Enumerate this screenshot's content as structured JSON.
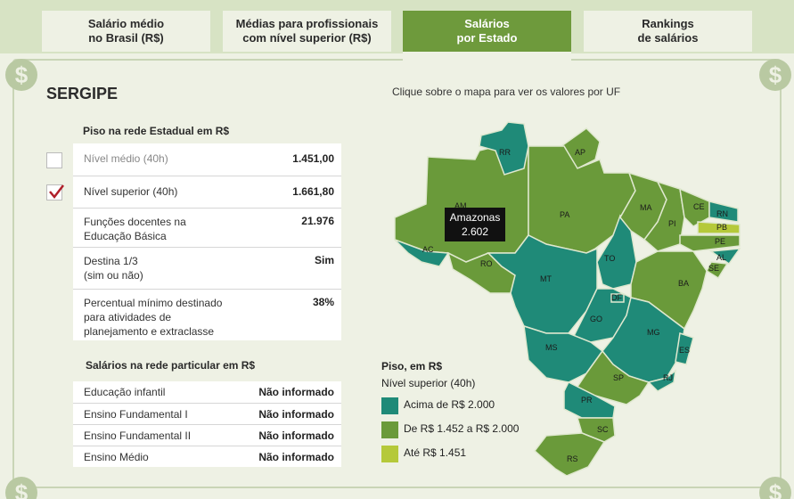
{
  "tabs": [
    {
      "label": "Salário médio\nno Brasil (R$)"
    },
    {
      "label": "Médias para profissionais\ncom nível superior (R$)"
    },
    {
      "label": "Salários\npor Estado"
    },
    {
      "label": "Rankings\nde salários"
    }
  ],
  "state_title": "SERGIPE",
  "map_hint": "Clique sobre o mapa para ver os valores por UF",
  "icons": {
    "currency": "$"
  },
  "public": {
    "title": "Piso na rede Estadual em R$",
    "rows": [
      {
        "label": "Nível médio (40h)",
        "value": "1.451,00",
        "checked": false
      },
      {
        "label": "Nível superior (40h)",
        "value": "1.661,80",
        "checked": true
      },
      {
        "label": "Funções docentes na\nEducação Básica",
        "value": "21.976"
      },
      {
        "label": "Destina 1/3\n(sim ou não)",
        "value": "Sim"
      },
      {
        "label": "Percentual mínimo destinado\npara atividades de\nplanejamento e extraclasse",
        "value": "38%"
      }
    ]
  },
  "private": {
    "title": "Salários na rede particular em R$",
    "rows": [
      {
        "label": "Educação infantil",
        "value": "Não informado"
      },
      {
        "label": "Ensino Fundamental I",
        "value": "Não informado"
      },
      {
        "label": "Ensino Fundamental II",
        "value": "Não informado"
      },
      {
        "label": "Ensino Médio",
        "value": "Não informado"
      }
    ]
  },
  "legend": {
    "title": "Piso, em R$",
    "subtitle": "Nível superior (40h)",
    "items": [
      {
        "label": "Acima de R$ 2.000",
        "color": "#1f8a78"
      },
      {
        "label": "De R$ 1.452 a R$ 2.000",
        "color": "#6a9a3a"
      },
      {
        "label": "Até R$ 1.451",
        "color": "#b5c93a"
      }
    ]
  },
  "tooltip": {
    "state": "Amazonas",
    "value": "2.602"
  },
  "map_states": [
    "RR",
    "AP",
    "AM",
    "PA",
    "MA",
    "CE",
    "RN",
    "PB",
    "PE",
    "AL",
    "SE",
    "PI",
    "AC",
    "RO",
    "TO",
    "BA",
    "MT",
    "DF",
    "GO",
    "MG",
    "ES",
    "MS",
    "SP",
    "RJ",
    "PR",
    "SC",
    "RS"
  ],
  "colors": {
    "tab_active": "#6e9a3c",
    "teal": "#1f8a78",
    "green": "#6a9a3a",
    "lime": "#b5c93a",
    "background": "#d7e3c4"
  }
}
